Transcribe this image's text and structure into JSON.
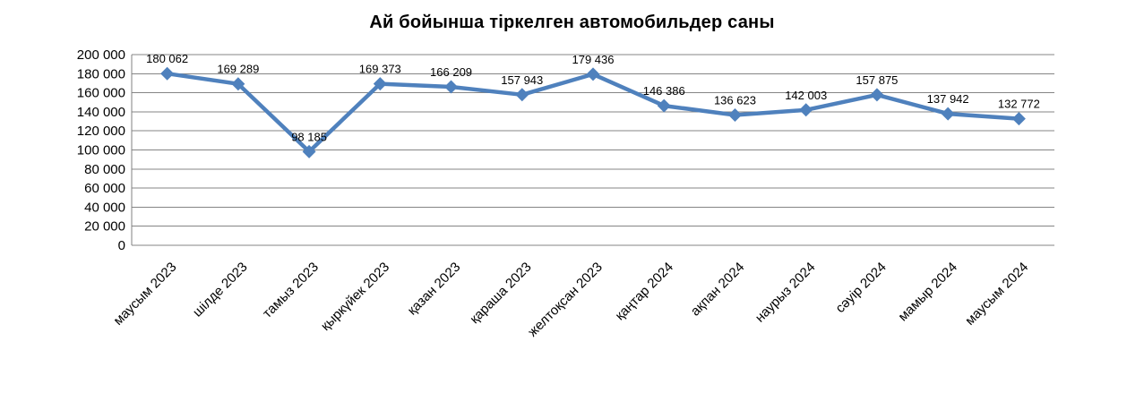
{
  "chart_data": {
    "type": "line",
    "title": "Ай бойынша тіркелген автомобильдер саны",
    "categories": [
      "маусым 2023",
      "шілде 2023",
      "тамыз 2023",
      "қыркүйек 2023",
      "қазан 2023",
      "қараша 2023",
      "желтоқсан 2023",
      "қаңтар 2024",
      "ақпан 2024",
      "наурыз 2024",
      "сәуір 2024",
      "мамыр 2024",
      "маусым 2024"
    ],
    "values": [
      180062,
      169289,
      98185,
      169373,
      166209,
      157943,
      179436,
      146386,
      136623,
      142003,
      157875,
      137942,
      132772
    ],
    "point_labels": [
      "180 062",
      "169 289",
      "98 185",
      "169 373",
      "166 209",
      "157 943",
      "179 436",
      "146 386",
      "136 623",
      "142 003",
      "157 875",
      "137 942",
      "132 772"
    ],
    "y_tick_labels": [
      "0",
      "20 000",
      "40 000",
      "60 000",
      "80 000",
      "100 000",
      "120 000",
      "140 000",
      "160 000",
      "180 000",
      "200 000"
    ],
    "ylim": [
      0,
      200000
    ],
    "y_step": 20000,
    "xlabel": "",
    "ylabel": "",
    "legend": "none",
    "grid": "horizontal",
    "line_color": "#4F81BD",
    "marker": "diamond",
    "marker_color": "#4F81BD"
  }
}
